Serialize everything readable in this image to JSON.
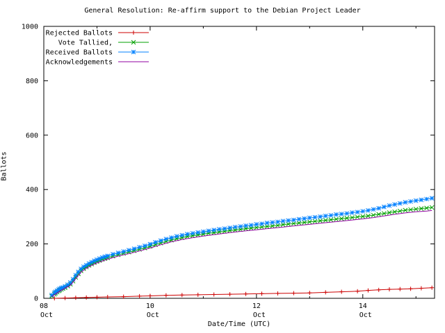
{
  "chart_data": {
    "type": "line",
    "title": "General Resolution: Re-affirm support to the Debian Project Leader",
    "xlabel": "Date/Time (UTC)",
    "ylabel": "Ballots",
    "xlim": [
      8.0,
      15.35
    ],
    "ylim": [
      0,
      1000
    ],
    "grid": false,
    "legend_position": "top-left",
    "y_ticks": [
      0,
      200,
      400,
      600,
      800,
      1000
    ],
    "x_ticks": [
      {
        "value": 8,
        "day": "08",
        "month": "Oct"
      },
      {
        "value": 10,
        "day": "10",
        "month": "Oct"
      },
      {
        "value": 12,
        "day": "12",
        "month": "Oct"
      },
      {
        "value": 14,
        "day": "14",
        "month": "Oct"
      }
    ],
    "x_minor_ticks": [
      9,
      11,
      13,
      15
    ],
    "series": [
      {
        "name": "Rejected Ballots",
        "color": "#cc0000",
        "marker": "plus",
        "points": [
          [
            8.2,
            0
          ],
          [
            8.4,
            1
          ],
          [
            8.6,
            2
          ],
          [
            8.8,
            3
          ],
          [
            9.0,
            4
          ],
          [
            9.2,
            5
          ],
          [
            9.5,
            6
          ],
          [
            9.8,
            8
          ],
          [
            10.0,
            9
          ],
          [
            10.3,
            11
          ],
          [
            10.6,
            12
          ],
          [
            10.9,
            13
          ],
          [
            11.2,
            14
          ],
          [
            11.5,
            15
          ],
          [
            11.8,
            16
          ],
          [
            12.1,
            17
          ],
          [
            12.4,
            18
          ],
          [
            12.7,
            19
          ],
          [
            13.0,
            20
          ],
          [
            13.3,
            22
          ],
          [
            13.6,
            24
          ],
          [
            13.9,
            26
          ],
          [
            14.1,
            29
          ],
          [
            14.3,
            31
          ],
          [
            14.5,
            33
          ],
          [
            14.7,
            34
          ],
          [
            14.9,
            35
          ],
          [
            15.1,
            37
          ],
          [
            15.3,
            39
          ]
        ]
      },
      {
        "name": "Vote Tallied,",
        "color": "#00a000",
        "marker": "x",
        "points": [
          [
            8.15,
            8
          ],
          [
            8.2,
            15
          ],
          [
            8.22,
            19
          ],
          [
            8.25,
            23
          ],
          [
            8.28,
            27
          ],
          [
            8.3,
            30
          ],
          [
            8.33,
            33
          ],
          [
            8.36,
            36
          ],
          [
            8.4,
            39
          ],
          [
            8.45,
            45
          ],
          [
            8.5,
            52
          ],
          [
            8.55,
            63
          ],
          [
            8.6,
            77
          ],
          [
            8.65,
            90
          ],
          [
            8.7,
            101
          ],
          [
            8.75,
            109
          ],
          [
            8.8,
            115
          ],
          [
            8.85,
            121
          ],
          [
            8.9,
            126
          ],
          [
            8.95,
            131
          ],
          [
            9.0,
            135
          ],
          [
            9.05,
            139
          ],
          [
            9.1,
            143
          ],
          [
            9.15,
            146
          ],
          [
            9.2,
            149
          ],
          [
            9.3,
            155
          ],
          [
            9.4,
            160
          ],
          [
            9.5,
            165
          ],
          [
            9.6,
            170
          ],
          [
            9.7,
            175
          ],
          [
            9.8,
            180
          ],
          [
            9.9,
            185
          ],
          [
            10.0,
            191
          ],
          [
            10.1,
            197
          ],
          [
            10.2,
            203
          ],
          [
            10.3,
            209
          ],
          [
            10.4,
            214
          ],
          [
            10.5,
            219
          ],
          [
            10.6,
            223
          ],
          [
            10.7,
            227
          ],
          [
            10.8,
            230
          ],
          [
            10.9,
            233
          ],
          [
            11.0,
            236
          ],
          [
            11.1,
            239
          ],
          [
            11.2,
            241
          ],
          [
            11.3,
            244
          ],
          [
            11.4,
            246
          ],
          [
            11.5,
            249
          ],
          [
            11.6,
            251
          ],
          [
            11.7,
            253
          ],
          [
            11.8,
            256
          ],
          [
            11.9,
            258
          ],
          [
            12.0,
            260
          ],
          [
            12.1,
            262
          ],
          [
            12.2,
            264
          ],
          [
            12.3,
            266
          ],
          [
            12.4,
            268
          ],
          [
            12.5,
            271
          ],
          [
            12.6,
            273
          ],
          [
            12.7,
            275
          ],
          [
            12.8,
            277
          ],
          [
            12.9,
            279
          ],
          [
            13.0,
            281
          ],
          [
            13.1,
            283
          ],
          [
            13.2,
            285
          ],
          [
            13.3,
            287
          ],
          [
            13.4,
            289
          ],
          [
            13.5,
            291
          ],
          [
            13.6,
            293
          ],
          [
            13.7,
            295
          ],
          [
            13.8,
            297
          ],
          [
            13.9,
            299
          ],
          [
            14.0,
            301
          ],
          [
            14.1,
            303
          ],
          [
            14.2,
            306
          ],
          [
            14.3,
            309
          ],
          [
            14.4,
            312
          ],
          [
            14.5,
            315
          ],
          [
            14.6,
            318
          ],
          [
            14.7,
            321
          ],
          [
            14.8,
            324
          ],
          [
            14.9,
            326
          ],
          [
            15.0,
            328
          ],
          [
            15.1,
            330
          ],
          [
            15.2,
            332
          ],
          [
            15.3,
            334
          ]
        ]
      },
      {
        "name": "Received Ballots",
        "color": "#0080ff",
        "marker": "star",
        "points": [
          [
            8.15,
            12
          ],
          [
            8.2,
            20
          ],
          [
            8.22,
            24
          ],
          [
            8.25,
            28
          ],
          [
            8.28,
            32
          ],
          [
            8.3,
            35
          ],
          [
            8.33,
            38
          ],
          [
            8.36,
            40
          ],
          [
            8.4,
            44
          ],
          [
            8.45,
            50
          ],
          [
            8.5,
            58
          ],
          [
            8.55,
            70
          ],
          [
            8.6,
            85
          ],
          [
            8.65,
            97
          ],
          [
            8.7,
            108
          ],
          [
            8.75,
            116
          ],
          [
            8.8,
            122
          ],
          [
            8.85,
            128
          ],
          [
            8.9,
            133
          ],
          [
            8.95,
            138
          ],
          [
            9.0,
            142
          ],
          [
            9.05,
            146
          ],
          [
            9.1,
            150
          ],
          [
            9.15,
            153
          ],
          [
            9.2,
            156
          ],
          [
            9.3,
            162
          ],
          [
            9.4,
            167
          ],
          [
            9.5,
            172
          ],
          [
            9.6,
            177
          ],
          [
            9.7,
            182
          ],
          [
            9.8,
            188
          ],
          [
            9.9,
            193
          ],
          [
            10.0,
            199
          ],
          [
            10.1,
            206
          ],
          [
            10.2,
            212
          ],
          [
            10.3,
            218
          ],
          [
            10.4,
            223
          ],
          [
            10.5,
            228
          ],
          [
            10.6,
            232
          ],
          [
            10.7,
            236
          ],
          [
            10.8,
            239
          ],
          [
            10.9,
            242
          ],
          [
            11.0,
            245
          ],
          [
            11.1,
            248
          ],
          [
            11.2,
            251
          ],
          [
            11.3,
            254
          ],
          [
            11.4,
            256
          ],
          [
            11.5,
            259
          ],
          [
            11.6,
            262
          ],
          [
            11.7,
            264
          ],
          [
            11.8,
            267
          ],
          [
            11.9,
            269
          ],
          [
            12.0,
            272
          ],
          [
            12.1,
            274
          ],
          [
            12.2,
            277
          ],
          [
            12.3,
            279
          ],
          [
            12.4,
            281
          ],
          [
            12.5,
            284
          ],
          [
            12.6,
            286
          ],
          [
            12.7,
            288
          ],
          [
            12.8,
            291
          ],
          [
            12.9,
            293
          ],
          [
            13.0,
            296
          ],
          [
            13.1,
            298
          ],
          [
            13.2,
            300
          ],
          [
            13.3,
            303
          ],
          [
            13.4,
            305
          ],
          [
            13.5,
            308
          ],
          [
            13.6,
            310
          ],
          [
            13.7,
            312
          ],
          [
            13.8,
            315
          ],
          [
            13.9,
            317
          ],
          [
            14.0,
            320
          ],
          [
            14.1,
            323
          ],
          [
            14.2,
            327
          ],
          [
            14.3,
            331
          ],
          [
            14.4,
            336
          ],
          [
            14.5,
            341
          ],
          [
            14.6,
            345
          ],
          [
            14.7,
            349
          ],
          [
            14.8,
            353
          ],
          [
            14.9,
            356
          ],
          [
            15.0,
            359
          ],
          [
            15.1,
            362
          ],
          [
            15.2,
            365
          ],
          [
            15.3,
            368
          ]
        ]
      },
      {
        "name": "Acknowledgements",
        "color": "#9000a0",
        "marker": "none",
        "points": [
          [
            8.15,
            6
          ],
          [
            8.3,
            26
          ],
          [
            8.5,
            48
          ],
          [
            8.6,
            72
          ],
          [
            8.7,
            96
          ],
          [
            8.8,
            110
          ],
          [
            8.9,
            121
          ],
          [
            9.0,
            130
          ],
          [
            9.2,
            144
          ],
          [
            9.4,
            155
          ],
          [
            9.6,
            164
          ],
          [
            9.8,
            174
          ],
          [
            10.0,
            185
          ],
          [
            10.2,
            197
          ],
          [
            10.4,
            208
          ],
          [
            10.6,
            216
          ],
          [
            10.8,
            223
          ],
          [
            11.0,
            229
          ],
          [
            11.2,
            234
          ],
          [
            11.4,
            239
          ],
          [
            11.6,
            244
          ],
          [
            11.8,
            248
          ],
          [
            12.0,
            252
          ],
          [
            12.2,
            256
          ],
          [
            12.4,
            260
          ],
          [
            12.6,
            264
          ],
          [
            12.8,
            268
          ],
          [
            13.0,
            272
          ],
          [
            13.2,
            276
          ],
          [
            13.4,
            280
          ],
          [
            13.6,
            284
          ],
          [
            13.8,
            288
          ],
          [
            14.0,
            292
          ],
          [
            14.2,
            297
          ],
          [
            14.4,
            303
          ],
          [
            14.6,
            309
          ],
          [
            14.8,
            314
          ],
          [
            15.0,
            318
          ],
          [
            15.2,
            321
          ],
          [
            15.3,
            323
          ]
        ]
      }
    ]
  }
}
